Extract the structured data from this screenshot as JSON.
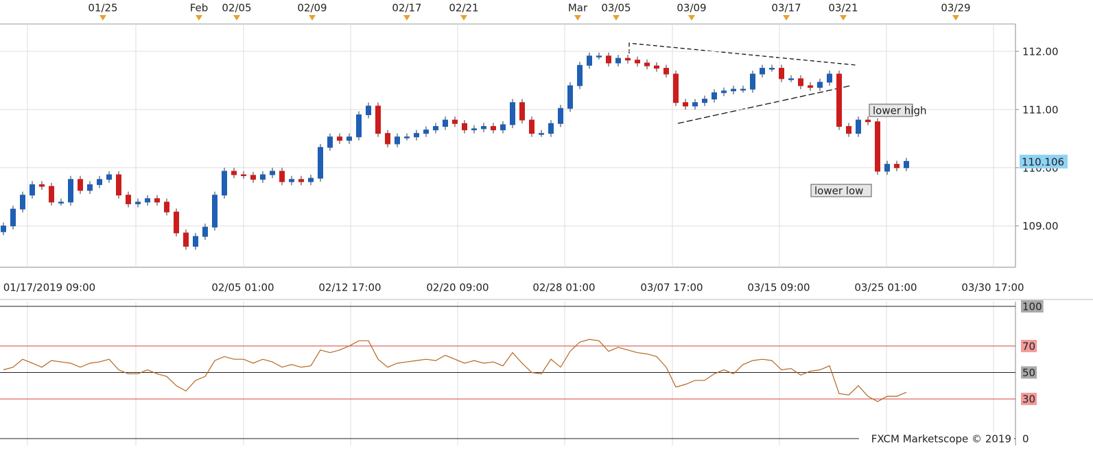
{
  "chart_data": [
    {
      "type": "candlestick",
      "top_dates": [
        "01/25",
        "Feb",
        "02/05",
        "02/09",
        "02/17",
        "02/21",
        "Mar",
        "03/05",
        "03/09",
        "03/17",
        "03/21",
        "03/29"
      ],
      "x_labels": [
        "01/17/2019 09:00",
        "02/05 01:00",
        "02/12 17:00",
        "02/20 09:00",
        "02/28 01:00",
        "03/07 17:00",
        "03/15 09:00",
        "03/25 01:00",
        "03/30 17:00"
      ],
      "open": [
        108.9,
        109.0,
        109.29,
        109.53,
        109.71,
        109.68,
        109.41,
        109.41,
        109.8,
        109.61,
        109.71,
        109.8,
        109.88,
        109.53,
        109.38,
        109.41,
        109.47,
        109.41,
        109.24,
        108.88,
        108.65,
        108.82,
        108.98,
        109.53,
        109.94,
        109.88,
        109.87,
        109.8,
        109.88,
        109.94,
        109.76,
        109.8,
        109.76,
        109.82,
        110.35,
        110.53,
        110.47,
        110.53,
        110.91,
        111.06,
        110.59,
        110.41,
        110.53,
        110.53,
        110.59,
        110.65,
        110.71,
        110.82,
        110.76,
        110.65,
        110.67,
        110.71,
        110.65,
        110.74,
        111.12,
        110.82,
        110.59,
        110.59,
        110.76,
        111.02,
        111.41,
        111.76,
        111.92,
        111.92,
        111.8,
        111.88,
        111.85,
        111.8,
        111.75,
        111.71,
        111.61,
        111.12,
        111.06,
        111.12,
        111.18,
        111.29,
        111.32,
        111.35,
        111.35,
        111.61,
        111.71,
        111.71,
        111.53,
        111.53,
        111.41,
        111.38,
        111.47,
        111.61,
        110.71,
        110.59,
        110.82,
        110.79,
        109.94,
        110.06,
        110.0
      ],
      "high": [
        109.06,
        109.35,
        109.59,
        109.77,
        109.77,
        109.74,
        109.47,
        109.86,
        109.86,
        109.77,
        109.86,
        109.94,
        109.94,
        109.59,
        109.47,
        109.53,
        109.53,
        109.47,
        109.3,
        108.94,
        108.88,
        109.04,
        109.59,
        110.0,
        110.0,
        109.94,
        109.93,
        109.94,
        110.0,
        110.0,
        109.86,
        109.86,
        109.88,
        110.41,
        110.59,
        110.59,
        110.59,
        110.97,
        111.12,
        111.12,
        110.65,
        110.59,
        110.59,
        110.65,
        110.71,
        110.77,
        110.88,
        110.88,
        110.82,
        110.73,
        110.77,
        110.77,
        110.8,
        111.18,
        111.18,
        110.88,
        110.65,
        110.82,
        111.08,
        111.47,
        111.82,
        111.98,
        111.98,
        111.98,
        111.94,
        111.94,
        111.91,
        111.86,
        111.81,
        111.77,
        111.67,
        111.18,
        111.18,
        111.24,
        111.35,
        111.38,
        111.41,
        111.41,
        111.67,
        111.77,
        111.77,
        111.77,
        111.59,
        111.59,
        111.47,
        111.53,
        111.67,
        111.67,
        110.77,
        110.88,
        110.88,
        110.85,
        110.12,
        110.12,
        110.17
      ],
      "low": [
        108.84,
        108.94,
        109.23,
        109.47,
        109.62,
        109.35,
        109.35,
        109.35,
        109.55,
        109.55,
        109.65,
        109.74,
        109.47,
        109.32,
        109.32,
        109.35,
        109.35,
        109.18,
        108.82,
        108.59,
        108.59,
        108.76,
        108.92,
        109.47,
        109.82,
        109.81,
        109.74,
        109.74,
        109.82,
        109.7,
        109.7,
        109.7,
        109.7,
        109.76,
        110.29,
        110.41,
        110.41,
        110.47,
        110.85,
        110.53,
        110.35,
        110.35,
        110.47,
        110.47,
        110.53,
        110.59,
        110.65,
        110.7,
        110.59,
        110.59,
        110.61,
        110.59,
        110.59,
        110.68,
        110.76,
        110.53,
        110.53,
        110.53,
        110.7,
        110.96,
        111.35,
        111.7,
        111.86,
        111.74,
        111.74,
        111.79,
        111.74,
        111.69,
        111.65,
        111.55,
        111.06,
        111.0,
        111.0,
        111.06,
        111.12,
        111.23,
        111.26,
        111.29,
        111.29,
        111.55,
        111.65,
        111.47,
        111.47,
        111.35,
        111.32,
        111.32,
        111.41,
        110.65,
        110.53,
        110.53,
        110.73,
        109.88,
        109.88,
        109.94,
        109.94
      ],
      "close": [
        109.0,
        109.29,
        109.53,
        109.71,
        109.68,
        109.41,
        109.41,
        109.8,
        109.61,
        109.71,
        109.8,
        109.88,
        109.53,
        109.38,
        109.41,
        109.47,
        109.41,
        109.24,
        108.88,
        108.65,
        108.82,
        108.98,
        109.53,
        109.94,
        109.88,
        109.87,
        109.8,
        109.88,
        109.94,
        109.76,
        109.8,
        109.76,
        109.82,
        110.35,
        110.53,
        110.47,
        110.53,
        110.91,
        111.06,
        110.59,
        110.41,
        110.53,
        110.53,
        110.59,
        110.65,
        110.71,
        110.82,
        110.76,
        110.65,
        110.67,
        110.71,
        110.65,
        110.74,
        111.12,
        110.82,
        110.59,
        110.59,
        110.76,
        111.02,
        111.41,
        111.76,
        111.92,
        111.92,
        111.8,
        111.88,
        111.85,
        111.8,
        111.75,
        111.71,
        111.61,
        111.12,
        111.06,
        111.12,
        111.18,
        111.29,
        111.32,
        111.35,
        111.35,
        111.61,
        111.71,
        111.71,
        111.53,
        111.53,
        111.41,
        111.38,
        111.47,
        111.61,
        110.71,
        110.59,
        110.82,
        110.79,
        109.94,
        110.06,
        110.0,
        110.11
      ],
      "up_color": "#1f5fb4",
      "down_color": "#cc1d1d",
      "ylim": [
        108.29,
        112.47
      ],
      "yticks": [
        {
          "value": 112,
          "label": "112.00"
        },
        {
          "value": 111,
          "label": "111.00"
        },
        {
          "value": 110,
          "label": "110.00"
        },
        {
          "value": 109,
          "label": "109.00"
        }
      ],
      "last_price": 110.106,
      "annotations": [
        "lower high",
        "lower low"
      ],
      "grid": true
    },
    {
      "type": "line",
      "values": [
        52,
        54,
        60,
        57,
        54,
        59,
        58,
        57,
        54,
        57,
        58,
        60,
        52,
        49,
        49,
        52,
        49,
        47,
        40,
        36,
        44,
        47,
        59,
        62,
        60,
        60,
        57,
        60,
        58,
        54,
        56,
        54,
        55,
        67,
        65,
        67,
        70,
        74,
        74,
        60,
        54,
        57,
        58,
        59,
        60,
        59,
        63,
        60,
        57,
        59,
        57,
        58,
        55,
        65,
        57,
        50,
        49,
        60,
        54,
        66,
        73,
        75,
        74,
        66,
        69,
        67,
        65,
        64,
        62,
        54,
        39,
        41,
        44,
        44,
        49,
        52,
        49,
        56,
        59,
        60,
        59,
        52,
        53,
        48,
        51,
        52,
        55,
        34,
        33,
        40,
        32,
        28,
        32,
        32,
        35
      ],
      "color": "#b5651d",
      "ylim": [
        0,
        100
      ],
      "yticks": [
        100,
        70,
        50,
        30,
        0
      ],
      "level_colors": [
        "#222222",
        "#d9413b",
        "#222222",
        "#d9413b",
        "#222222"
      ],
      "footer": "FXCM Marketscope © 2019"
    }
  ]
}
